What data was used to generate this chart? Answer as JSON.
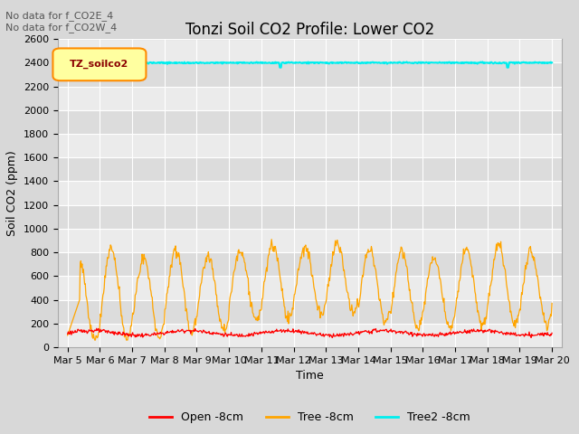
{
  "title": "Tonzi Soil CO2 Profile: Lower CO2",
  "xlabel": "Time",
  "ylabel": "Soil CO2 (ppm)",
  "annotations": [
    "No data for f_CO2E_4",
    "No data for f_CO2W_4"
  ],
  "legend_label": "TZ_soilco2",
  "ylim": [
    0,
    2600
  ],
  "yticks": [
    0,
    200,
    400,
    600,
    800,
    1000,
    1200,
    1400,
    1600,
    1800,
    2000,
    2200,
    2400,
    2600
  ],
  "xtick_labels": [
    "Mar 5",
    "Mar 6",
    "Mar 7",
    "Mar 8",
    "Mar 9",
    "Mar 10",
    "Mar 11",
    "Mar 12",
    "Mar 13",
    "Mar 14",
    "Mar 15",
    "Mar 16",
    "Mar 17",
    "Mar 18",
    "Mar 19",
    "Mar 20"
  ],
  "line_open_color": "#FF0000",
  "line_tree_color": "#FFA500",
  "line_tree2_color": "#00EEEE",
  "tree2_value": 2400,
  "background_color": "#D8D8D8",
  "plot_bg_light": "#EBEBEB",
  "plot_bg_dark": "#DCDCDC",
  "grid_color": "#FFFFFF",
  "legend_entries": [
    "Open -8cm",
    "Tree -8cm",
    "Tree2 -8cm"
  ],
  "title_fontsize": 12,
  "axis_label_fontsize": 9,
  "tick_fontsize": 8,
  "annotation_color": "#555555",
  "tz_box_facecolor": "#FFFFA0",
  "tz_box_edgecolor": "#FF8C00",
  "tz_text_color": "#8B0000"
}
